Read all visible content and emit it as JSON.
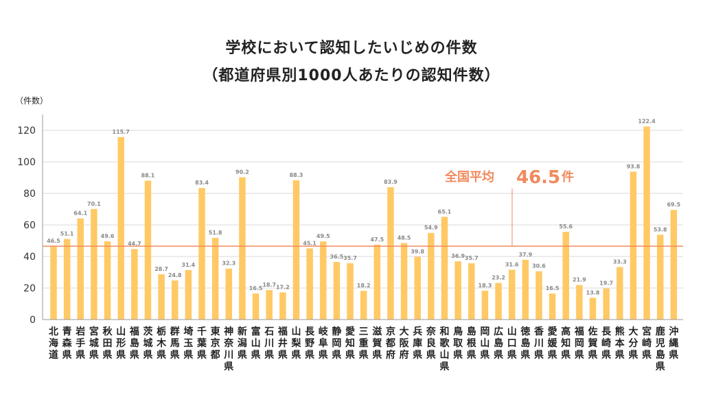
{
  "chart_data": {
    "type": "bar",
    "title": "学校において認知したいじめの件数",
    "subtitle": "（都道府県別1000人あたりの認知件数）",
    "ylabel": "（件数）",
    "ylim": [
      0,
      130
    ],
    "yticks": [
      0,
      20,
      40,
      60,
      80,
      100,
      120
    ],
    "grid": true,
    "bar_color": "#ffc965",
    "average": {
      "label": "全国平均",
      "value": 46.5,
      "value_text": "46.5",
      "unit": "件",
      "color": "#f08a5d"
    },
    "categories": [
      "北海道",
      "青森県",
      "岩手県",
      "宮城県",
      "秋田県",
      "山形県",
      "福島県",
      "茨城県",
      "栃木県",
      "群馬県",
      "埼玉県",
      "千葉県",
      "東京都",
      "神奈川県",
      "新潟県",
      "富山県",
      "石川県",
      "福井県",
      "山梨県",
      "長野県",
      "岐阜県",
      "静岡県",
      "愛知県",
      "三重県",
      "滋賀県",
      "京都府",
      "大阪府",
      "兵庫県",
      "奈良県",
      "和歌山県",
      "鳥取県",
      "島根県",
      "岡山県",
      "広島県",
      "山口県",
      "徳島県",
      "香川県",
      "愛媛県",
      "高知県",
      "福岡県",
      "佐賀県",
      "長崎県",
      "熊本県",
      "大分県",
      "宮崎県",
      "鹿児島県",
      "沖縄県"
    ],
    "values": [
      46.5,
      51.1,
      64.1,
      70.1,
      49.6,
      115.7,
      44.7,
      88.1,
      28.7,
      24.8,
      31.4,
      83.4,
      51.8,
      32.3,
      90.2,
      16.5,
      18.7,
      17.2,
      88.3,
      45.1,
      49.5,
      36.5,
      35.7,
      18.2,
      47.5,
      83.9,
      48.5,
      39.8,
      54.9,
      65.1,
      36.9,
      35.7,
      18.3,
      23.2,
      31.6,
      37.9,
      30.6,
      16.5,
      55.6,
      21.9,
      13.8,
      19.7,
      33.3,
      93.8,
      122.4,
      53.8,
      69.5
    ]
  }
}
